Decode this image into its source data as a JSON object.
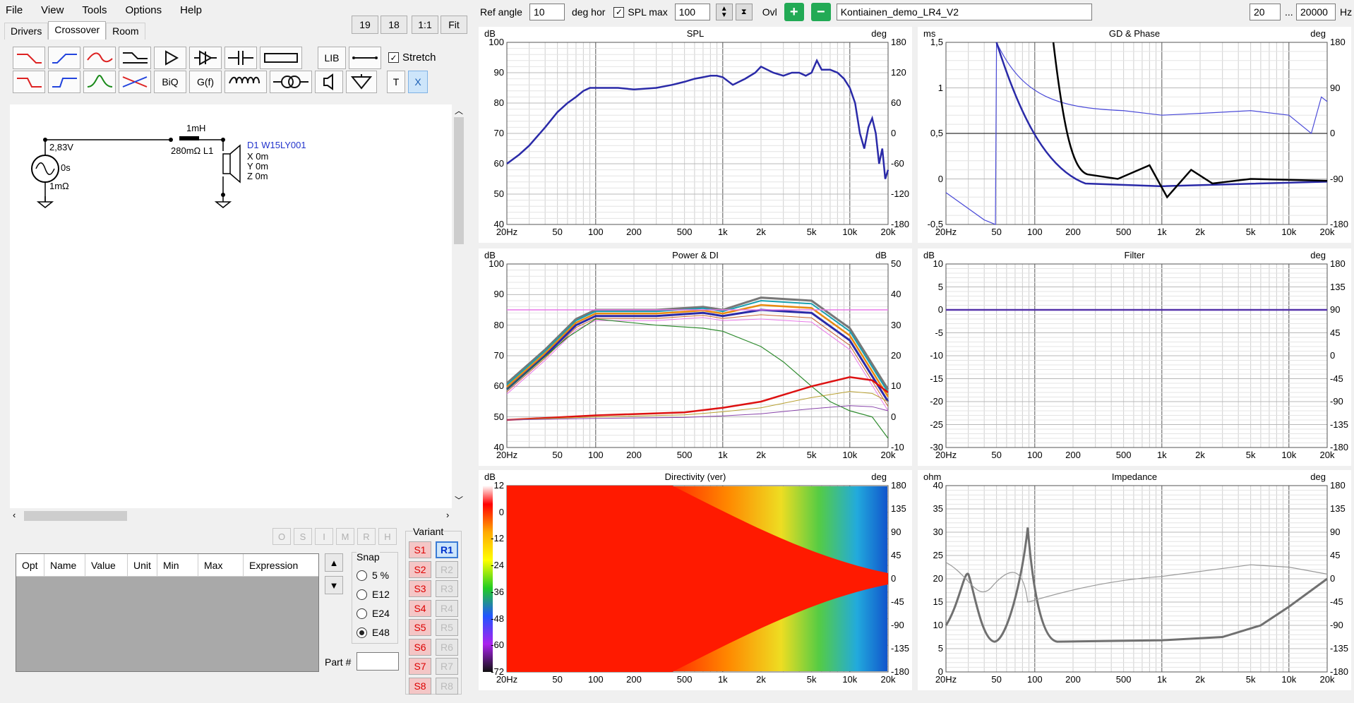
{
  "menu": [
    "File",
    "View",
    "Tools",
    "Options",
    "Help"
  ],
  "tabs": [
    "Drivers",
    "Crossover",
    "Room"
  ],
  "active_tab": "Crossover",
  "zoom_buttons": [
    "19",
    "18",
    "1:1",
    "Fit"
  ],
  "toolbar": {
    "biq": "BiQ",
    "gf": "G(f)",
    "lib": "LIB",
    "t": "T",
    "x": "X",
    "stretch_label": "Stretch",
    "stretch_checked": true
  },
  "schematic": {
    "source_voltage": "2,83V",
    "source_delay": "0s",
    "source_resistance": "1mΩ",
    "inductor_value": "1mH",
    "inductor_label": "280mΩ L1",
    "driver_name": "D1 W15LY001",
    "driver_x": "X 0m",
    "driver_y": "Y 0m",
    "driver_z": "Z 0m"
  },
  "option_buttons": [
    "O",
    "S",
    "I",
    "M",
    "R",
    "H"
  ],
  "table_headers": [
    "Opt",
    "Name",
    "Value",
    "Unit",
    "Min",
    "Max",
    "Expression"
  ],
  "snap": {
    "label": "Snap",
    "options": [
      "5 %",
      "E12",
      "E24",
      "E48"
    ],
    "selected": "E48"
  },
  "part_label": "Part #",
  "variant": {
    "label": "Variant",
    "s": [
      "S1",
      "S2",
      "S3",
      "S4",
      "S5",
      "S6",
      "S7",
      "S8"
    ],
    "r": [
      "R1",
      "R2",
      "R3",
      "R4",
      "R5",
      "R6",
      "R7",
      "R8"
    ],
    "active": "R1"
  },
  "topbar": {
    "ref_angle_label": "Ref angle",
    "ref_angle": "10",
    "deg_hor": "deg hor",
    "spl_max_label": "SPL max",
    "spl_max": "100",
    "ovl": "Ovl",
    "filename": "Kontiainen_demo_LR4_V2",
    "f_min": "20",
    "ellipsis": "...",
    "f_max": "20000",
    "hz": "Hz"
  },
  "colors": {
    "blue": "#2a2aa8",
    "thin_blue": "#4b4bd8",
    "black": "#000000",
    "grey": "#707070",
    "pink": "#e878e8",
    "red": "#dd1111",
    "green": "#2e8b2e",
    "orange": "#e88a10",
    "teal": "#1aa0b0"
  },
  "freq_ticks": [
    "20Hz",
    "50",
    "100",
    "200",
    "500",
    "1k",
    "2k",
    "5k",
    "10k",
    "20k"
  ],
  "charts": {
    "spl": {
      "title": "SPL",
      "left_unit": "dB",
      "right_unit": "deg",
      "left_ticks": [
        "100",
        "90",
        "80",
        "70",
        "60",
        "50",
        "40"
      ],
      "right_ticks": [
        "180",
        "120",
        "60",
        "0",
        "-60",
        "-120",
        "-180"
      ],
      "ylim": [
        40,
        100
      ],
      "series": [
        {
          "color": "#2a2aa8",
          "x": [
            20,
            25,
            30,
            40,
            50,
            60,
            70,
            80,
            90,
            100,
            150,
            200,
            300,
            400,
            500,
            600,
            700,
            800,
            900,
            1000,
            1200,
            1500,
            1800,
            2000,
            2500,
            3000,
            3500,
            4000,
            4500,
            5000,
            5500,
            6000,
            7000,
            8000,
            9000,
            10000,
            11000,
            12000,
            13000,
            14000,
            15000,
            16000,
            17000,
            18000,
            19000,
            20000
          ],
          "y": [
            60,
            63,
            66,
            72,
            77,
            80,
            82,
            84,
            85,
            85,
            85,
            84.5,
            85,
            86,
            87,
            88,
            88.5,
            89,
            89,
            88.5,
            86,
            88,
            90,
            92,
            90,
            89,
            90,
            90,
            89,
            90,
            94,
            91,
            91,
            90,
            88,
            85,
            80,
            70,
            65,
            72,
            75,
            70,
            60,
            65,
            55,
            58
          ]
        }
      ]
    },
    "gd_phase": {
      "title": "GD & Phase",
      "left_unit": "ms",
      "right_unit": "deg",
      "left_ticks": [
        "1,5",
        "1",
        "0,5",
        "0",
        "-0,5"
      ],
      "right_ticks": [
        "180",
        "90",
        "0",
        "-90",
        "-180"
      ]
    },
    "power_di": {
      "title": "Power & DI",
      "left_unit": "dB",
      "right_unit": "dB",
      "left_ticks": [
        "100",
        "90",
        "80",
        "70",
        "60",
        "50",
        "40"
      ],
      "right_ticks": [
        "50",
        "40",
        "30",
        "20",
        "10",
        "0",
        "-10"
      ]
    },
    "filter": {
      "title": "Filter",
      "left_unit": "dB",
      "right_unit": "deg",
      "left_ticks": [
        "10",
        "5",
        "0",
        "-5",
        "-10",
        "-15",
        "-20",
        "-25",
        "-30"
      ],
      "right_ticks": [
        "180",
        "135",
        "90",
        "45",
        "0",
        "-45",
        "-90",
        "-135",
        "-180"
      ]
    },
    "directivity": {
      "title": "Directivity (ver)",
      "left_unit": "dB",
      "right_unit": "deg",
      "left_ticks": [
        "12",
        "0",
        "-12",
        "-24",
        "-36",
        "-48",
        "-60",
        "-72"
      ],
      "right_ticks": [
        "180",
        "135",
        "90",
        "45",
        "0",
        "-45",
        "-90",
        "-135",
        "-180"
      ]
    },
    "impedance": {
      "title": "Impedance",
      "left_unit": "ohm",
      "right_unit": "deg",
      "left_ticks": [
        "40",
        "35",
        "30",
        "25",
        "20",
        "15",
        "10",
        "5",
        "0"
      ],
      "right_ticks": [
        "180",
        "135",
        "90",
        "45",
        "0",
        "-45",
        "-90",
        "-135",
        "-180"
      ]
    }
  }
}
